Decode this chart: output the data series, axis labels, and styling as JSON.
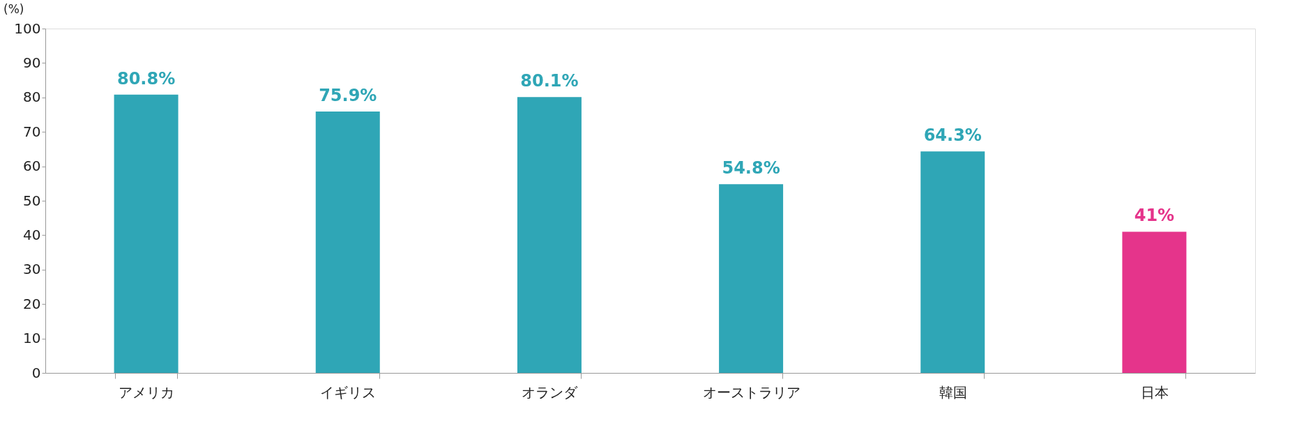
{
  "chart_data": {
    "type": "bar",
    "ylabel": "(%)",
    "categories": [
      "アメリカ",
      "イギリス",
      "オランダ",
      "オーストラリア",
      "韓国",
      "日本"
    ],
    "values": [
      80.8,
      75.9,
      80.1,
      54.8,
      64.3,
      41
    ],
    "colors": [
      "#2fa6b6",
      "#2fa6b6",
      "#2fa6b6",
      "#2fa6b6",
      "#2fa6b6",
      "#e5348b"
    ],
    "value_labels": [
      "80.8%",
      "75.9%",
      "80.1%",
      "54.8%",
      "64.3%",
      "41%"
    ],
    "ylim": [
      0,
      100
    ],
    "yticks": [
      0,
      10,
      20,
      30,
      40,
      50,
      60,
      70,
      80,
      90,
      100
    ],
    "grid": false
  }
}
